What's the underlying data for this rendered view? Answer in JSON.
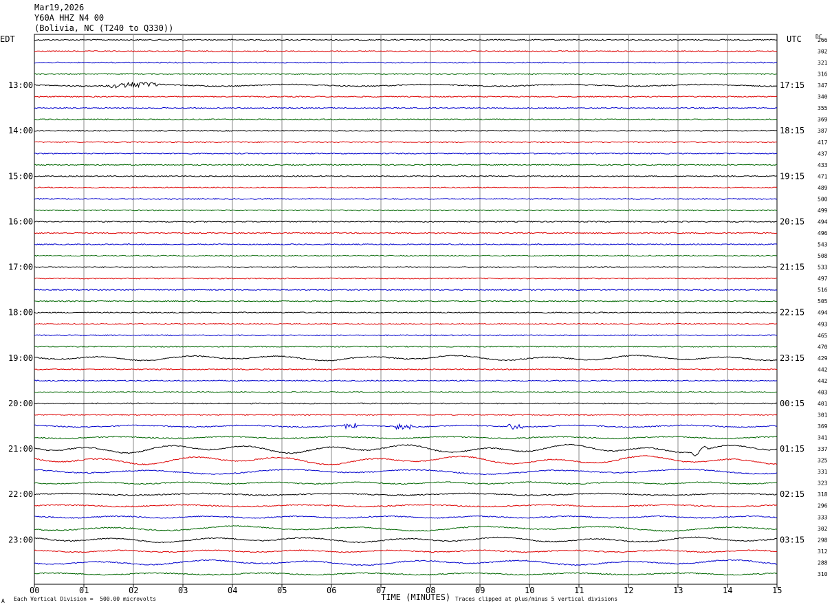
{
  "header": {
    "date": "Mar19,2026",
    "station": "Y60A HHZ N4 00",
    "location": "(Bolivia, NC (T240 to Q330))"
  },
  "left_tz": "EDT",
  "right_tz": "UTC",
  "dc_label": "DC",
  "footer": {
    "scale_note": "Each Vertical Division =  500.00 microvolts",
    "clip_note": "Traces clipped at plus/minus 5 vertical divisions",
    "corner_mark": "A"
  },
  "chart_data": {
    "type": "line",
    "title": "Mar19,2026",
    "xlabel": "TIME (MINUTES)",
    "ylabel": "",
    "xlim": [
      0,
      15
    ],
    "x_tick_labels": [
      "00",
      "01",
      "02",
      "03",
      "04",
      "05",
      "06",
      "07",
      "08",
      "09",
      "10",
      "11",
      "12",
      "13",
      "14",
      "15"
    ],
    "trace_colors": [
      "#000000",
      "#dd0000",
      "#0000cc",
      "#006600"
    ],
    "grid": true,
    "left_hour_labels": [
      "13:00",
      "14:00",
      "15:00",
      "16:00",
      "17:00",
      "18:00",
      "19:00",
      "20:00",
      "21:00",
      "22:00",
      "23:00"
    ],
    "right_hour_labels": [
      "17:15",
      "18:15",
      "19:15",
      "20:15",
      "21:15",
      "22:15",
      "23:15",
      "00:15",
      "01:15",
      "02:15",
      "03:15"
    ],
    "dc_offsets": [
      266,
      302,
      321,
      316,
      347,
      340,
      355,
      369,
      387,
      417,
      437,
      433,
      471,
      489,
      500,
      499,
      494,
      496,
      543,
      508,
      533,
      497,
      516,
      505,
      494,
      493,
      465,
      470,
      429,
      442,
      442,
      403,
      401,
      301,
      369,
      341,
      337,
      325,
      331,
      323,
      318,
      296,
      333,
      302,
      298,
      312,
      288,
      310
    ],
    "trace_activity": [
      1,
      1,
      1,
      1,
      2,
      1,
      1,
      1,
      1,
      1,
      1,
      1,
      1,
      1,
      1,
      1,
      1,
      1,
      1,
      1,
      1,
      1,
      1,
      1,
      1,
      1,
      1,
      1,
      3,
      1,
      1,
      1,
      1,
      1,
      2,
      2,
      4,
      4,
      3,
      2,
      2,
      2,
      2,
      3,
      3,
      2,
      3,
      2
    ]
  }
}
